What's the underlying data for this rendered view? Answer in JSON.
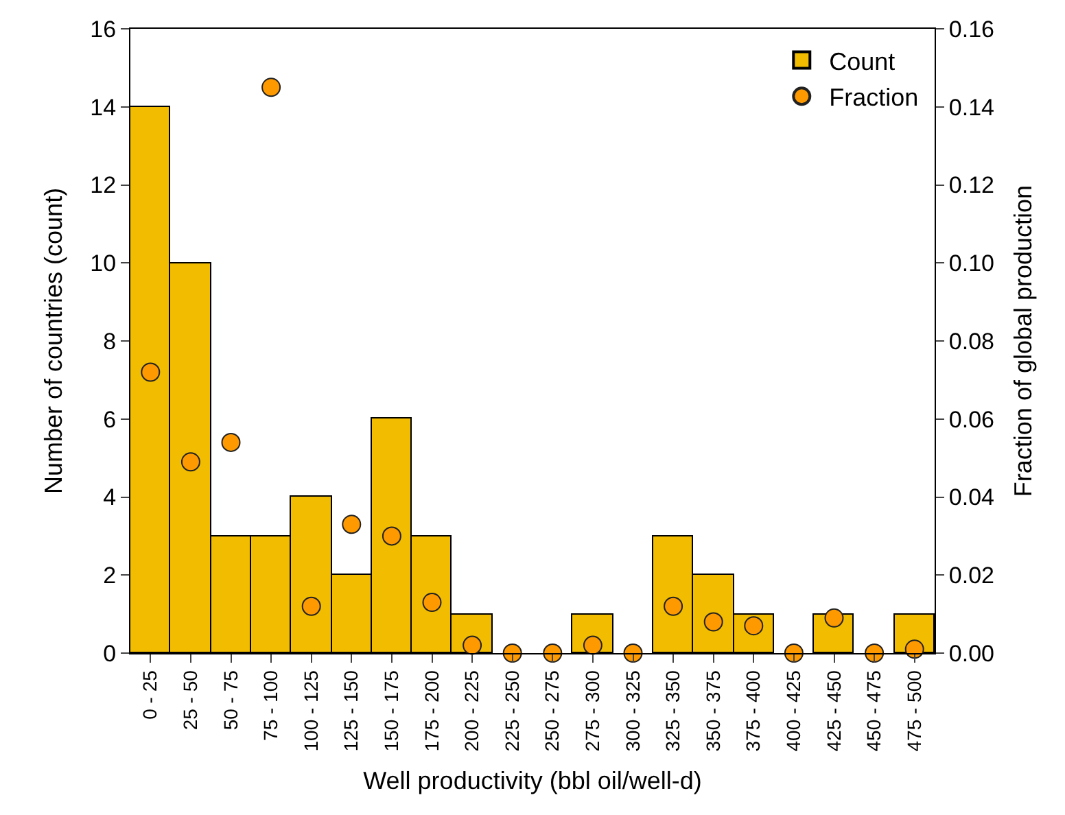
{
  "chart_data": {
    "type": "bar",
    "xlabel": "Well productivity (bbl oil/well-d)",
    "ylabel": "Number of countries (count)",
    "y2label": "Fraction of global production",
    "categories": [
      "0 - 25",
      "25 - 50",
      "50 - 75",
      "75 - 100",
      "100 - 125",
      "125 - 150",
      "150 - 175",
      "175 - 200",
      "200 - 225",
      "225 - 250",
      "250 - 275",
      "275 - 300",
      "300 - 325",
      "325 - 350",
      "350 - 375",
      "375 - 400",
      "400 - 425",
      "425 - 450",
      "450 - 475",
      "475 - 500"
    ],
    "series": [
      {
        "name": "Count",
        "color": "#f2bc00",
        "values": [
          14,
          10,
          3,
          3,
          4,
          2,
          6,
          3,
          1,
          0,
          0,
          1,
          0,
          3,
          2,
          1,
          0,
          1,
          0,
          1
        ]
      },
      {
        "name": "Fraction",
        "type": "scatter",
        "axis": "y2",
        "color": "#ff9900",
        "marker": "circle",
        "values": [
          0.072,
          0.049,
          0.054,
          0.145,
          0.012,
          0.033,
          0.03,
          0.013,
          0.002,
          0,
          0,
          0.002,
          0,
          0.012,
          0.008,
          0.007,
          0,
          0.009,
          0,
          0.001
        ]
      }
    ],
    "ylim": [
      0,
      16
    ],
    "yticks": [
      0,
      2,
      4,
      6,
      8,
      10,
      12,
      14,
      16
    ],
    "y2lim": [
      0,
      0.16
    ],
    "y2ticks": [
      {
        "value": 0,
        "label": "0.00"
      },
      {
        "value": 0.02,
        "label": "0.02"
      },
      {
        "value": 0.04,
        "label": "0.04"
      },
      {
        "value": 0.06,
        "label": "0.06"
      },
      {
        "value": 0.08,
        "label": "0.08"
      },
      {
        "value": 0.1,
        "label": "0.10"
      },
      {
        "value": 0.12,
        "label": "0.12"
      },
      {
        "value": 0.14,
        "label": "0.14"
      },
      {
        "value": 0.16,
        "label": "0.16"
      }
    ],
    "legend": "top right"
  }
}
